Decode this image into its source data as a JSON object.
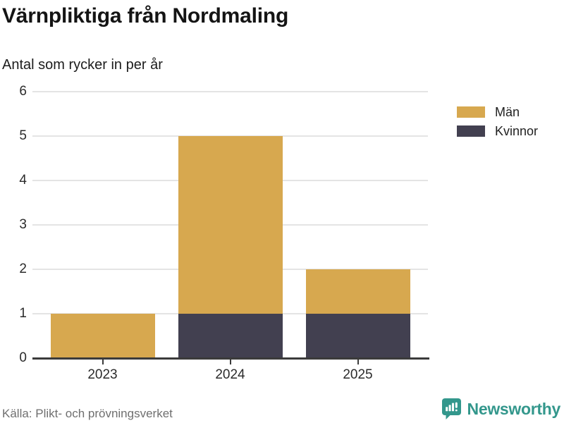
{
  "header": {
    "title": "Värnpliktiga från Nordmaling",
    "subtitle": "Antal som rycker in per år"
  },
  "chart_data": {
    "type": "bar",
    "stacked": true,
    "categories": [
      "2023",
      "2024",
      "2025"
    ],
    "series": [
      {
        "name": "Män",
        "color": "#d7a84f",
        "values": [
          1,
          4,
          1
        ]
      },
      {
        "name": "Kvinnor",
        "color": "#424050",
        "values": [
          0,
          1,
          1
        ]
      }
    ],
    "totals": [
      1,
      5,
      2
    ],
    "ylim": [
      0,
      6
    ],
    "yticks": [
      0,
      1,
      2,
      3,
      4,
      5,
      6
    ],
    "grid": true,
    "legend_position": "right",
    "stack_bottom_to_top": [
      "Kvinnor",
      "Män"
    ]
  },
  "colors": {
    "men": "#d7a84f",
    "women": "#424050",
    "gridline": "#e4e4e4",
    "axis": "#3b3b3b",
    "brand_teal": "#33978c"
  },
  "footer": {
    "source": "Källa: Plikt- och prövningsverket",
    "brand": "Newsworthy"
  }
}
